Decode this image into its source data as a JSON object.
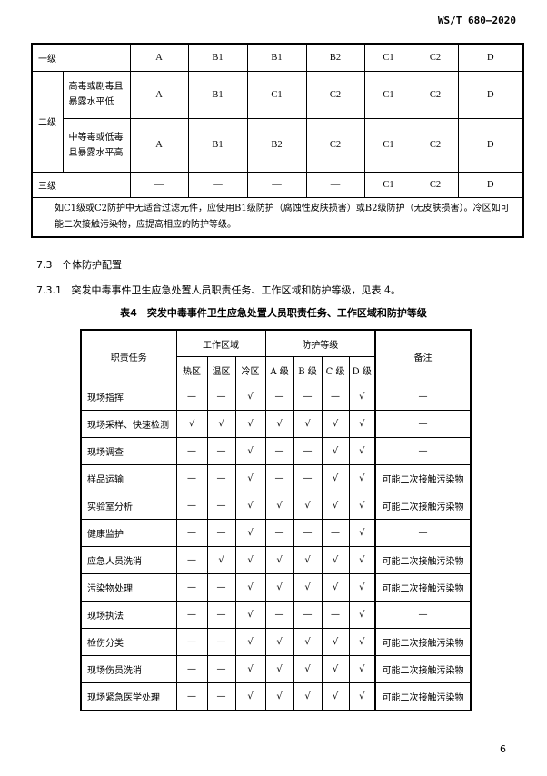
{
  "header": {
    "doc_code": "WS/T 680—2020"
  },
  "table3": {
    "rows": [
      {
        "level": "一级",
        "cells": [
          "A",
          "B1",
          "B1",
          "B2",
          "C1",
          "C2",
          "D"
        ]
      },
      {
        "level": "二级",
        "sub": "高毒或剧毒且暴露水平低",
        "cells": [
          "A",
          "B1",
          "C1",
          "C2",
          "C1",
          "C2",
          "D"
        ]
      },
      {
        "sub": "中等毒或低毒且暴露水平高",
        "cells": [
          "A",
          "B1",
          "B2",
          "C2",
          "C1",
          "C2",
          "D"
        ]
      },
      {
        "level": "三级",
        "cells": [
          "—",
          "—",
          "—",
          "—",
          "C1",
          "C2",
          "D"
        ]
      }
    ],
    "note": "如C1级或C2防护中无适合过滤元件，应使用B1级防护（腐蚀性皮肤损害）或B2级防护（无皮肤损害）。冷区如可能二次接触污染物，应提高相应的防护等级。"
  },
  "section": {
    "num": "7.3",
    "title": "个体防护配置"
  },
  "clause": {
    "num": "7.3.1",
    "text": "突发中毒事件卫生应急处置人员职责任务、工作区域和防护等级，见表 4。"
  },
  "table4": {
    "title": "表4　突发中毒事件卫生应急处置人员职责任务、工作区域和防护等级",
    "headers": {
      "task": "职责任务",
      "zone": "工作区域",
      "level": "防护等级",
      "remark": "备注",
      "sub": [
        "热区",
        "温区",
        "冷区",
        "A 级",
        "B 级",
        "C 级",
        "D 级"
      ]
    },
    "rows": [
      {
        "task": "现场指挥",
        "cells": [
          "—",
          "—",
          "√",
          "—",
          "—",
          "—",
          "√"
        ],
        "remark": "—"
      },
      {
        "task": "现场采样、快速检测",
        "cells": [
          "√",
          "√",
          "√",
          "√",
          "√",
          "√",
          "√"
        ],
        "remark": "—"
      },
      {
        "task": "现场调查",
        "cells": [
          "—",
          "—",
          "√",
          "—",
          "—",
          "√",
          "√"
        ],
        "remark": "—"
      },
      {
        "task": "样品运输",
        "cells": [
          "—",
          "—",
          "√",
          "—",
          "—",
          "√",
          "√"
        ],
        "remark": "可能二次接触污染物"
      },
      {
        "task": "实验室分析",
        "cells": [
          "—",
          "—",
          "√",
          "√",
          "√",
          "√",
          "√"
        ],
        "remark": "可能二次接触污染物"
      },
      {
        "task": "健康监护",
        "cells": [
          "—",
          "—",
          "√",
          "—",
          "—",
          "—",
          "√"
        ],
        "remark": "—"
      },
      {
        "task": "应急人员洗消",
        "cells": [
          "—",
          "√",
          "√",
          "√",
          "√",
          "√",
          "√"
        ],
        "remark": "可能二次接触污染物"
      },
      {
        "task": "污染物处理",
        "cells": [
          "—",
          "—",
          "√",
          "√",
          "√",
          "√",
          "√"
        ],
        "remark": "可能二次接触污染物"
      },
      {
        "task": "现场执法",
        "cells": [
          "—",
          "—",
          "√",
          "—",
          "—",
          "—",
          "√"
        ],
        "remark": "—"
      },
      {
        "task": "检伤分类",
        "cells": [
          "—",
          "—",
          "√",
          "√",
          "√",
          "√",
          "√"
        ],
        "remark": "可能二次接触污染物"
      },
      {
        "task": "现场伤员洗消",
        "cells": [
          "—",
          "—",
          "√",
          "√",
          "√",
          "√",
          "√"
        ],
        "remark": "可能二次接触污染物"
      },
      {
        "task": "现场紧急医学处理",
        "cells": [
          "—",
          "—",
          "√",
          "√",
          "√",
          "√",
          "√"
        ],
        "remark": "可能二次接触污染物"
      }
    ]
  },
  "footer": {
    "page": "6"
  }
}
